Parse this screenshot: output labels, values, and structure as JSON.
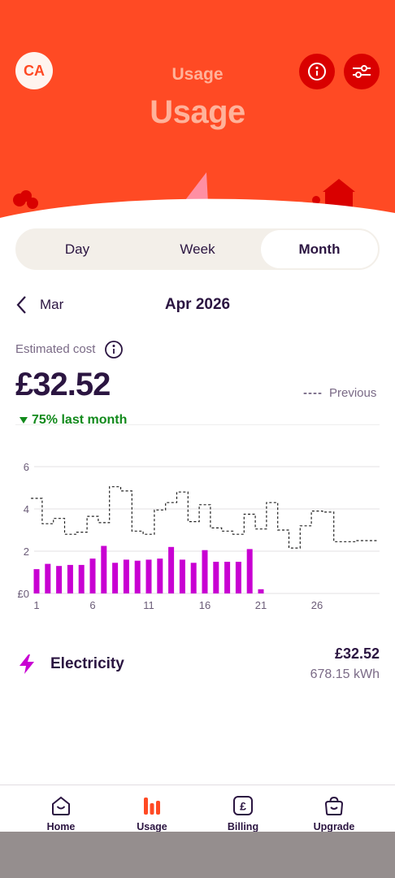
{
  "header": {
    "avatar_initials": "CA",
    "title_small": "Usage",
    "title_large": "Usage",
    "info_icon": "info-icon",
    "filter_icon": "sliders-icon",
    "colors": {
      "background": "#ff4a24",
      "buttons": "#d90000"
    }
  },
  "tabs": {
    "items": [
      "Day",
      "Week",
      "Month"
    ],
    "active": "Month"
  },
  "period": {
    "prev_label": "Mar",
    "current": "Apr 2026"
  },
  "summary": {
    "estimated_label": "Estimated cost",
    "cost": "£32.52",
    "previous_legend": "Previous",
    "delta_text": "75% last month",
    "delta_color": "#128a1c"
  },
  "chart_data": {
    "type": "bar",
    "y_ticks": [
      "6",
      "4",
      "2",
      "£0"
    ],
    "x_ticks": [
      "1",
      "6",
      "11",
      "16",
      "21",
      "26"
    ],
    "ylim": [
      0,
      6
    ],
    "days": [
      1,
      2,
      3,
      4,
      5,
      6,
      7,
      8,
      9,
      10,
      11,
      12,
      13,
      14,
      15,
      16,
      17,
      18,
      19,
      20,
      21
    ],
    "values": [
      1.15,
      1.4,
      1.3,
      1.35,
      1.35,
      1.65,
      2.25,
      1.45,
      1.6,
      1.55,
      1.6,
      1.65,
      2.2,
      1.6,
      1.45,
      2.05,
      1.5,
      1.5,
      1.5,
      2.1,
      0.2
    ],
    "bar_color": "#c800d2",
    "previous_series": {
      "name": "Previous",
      "x": [
        1,
        2,
        3,
        4,
        5,
        6,
        7,
        8,
        9,
        10,
        11,
        12,
        13,
        14,
        15,
        16,
        17,
        18,
        19,
        20,
        21,
        22,
        23,
        24,
        25,
        26,
        27,
        28,
        29,
        30,
        31
      ],
      "values": [
        4.5,
        3.3,
        3.55,
        2.8,
        2.9,
        3.65,
        3.35,
        5.05,
        4.85,
        2.95,
        2.8,
        3.95,
        4.3,
        4.8,
        3.4,
        4.2,
        3.1,
        2.95,
        2.8,
        3.75,
        3.05,
        4.3,
        3.0,
        2.15,
        3.2,
        3.9,
        3.85,
        2.45,
        2.45,
        2.5,
        2.5
      ]
    }
  },
  "fuel": {
    "name": "Electricity",
    "cost": "£32.52",
    "usage": "678.15 kWh",
    "icon": "lightning-icon",
    "color": "#c800d2"
  },
  "bottom_nav": {
    "items": [
      {
        "label": "Home",
        "icon": "home-icon"
      },
      {
        "label": "Usage",
        "icon": "usage-bars-icon"
      },
      {
        "label": "Billing",
        "icon": "pound-icon"
      },
      {
        "label": "Upgrade",
        "icon": "bag-icon"
      }
    ],
    "active": "Usage",
    "accent": "#ff4a24"
  }
}
